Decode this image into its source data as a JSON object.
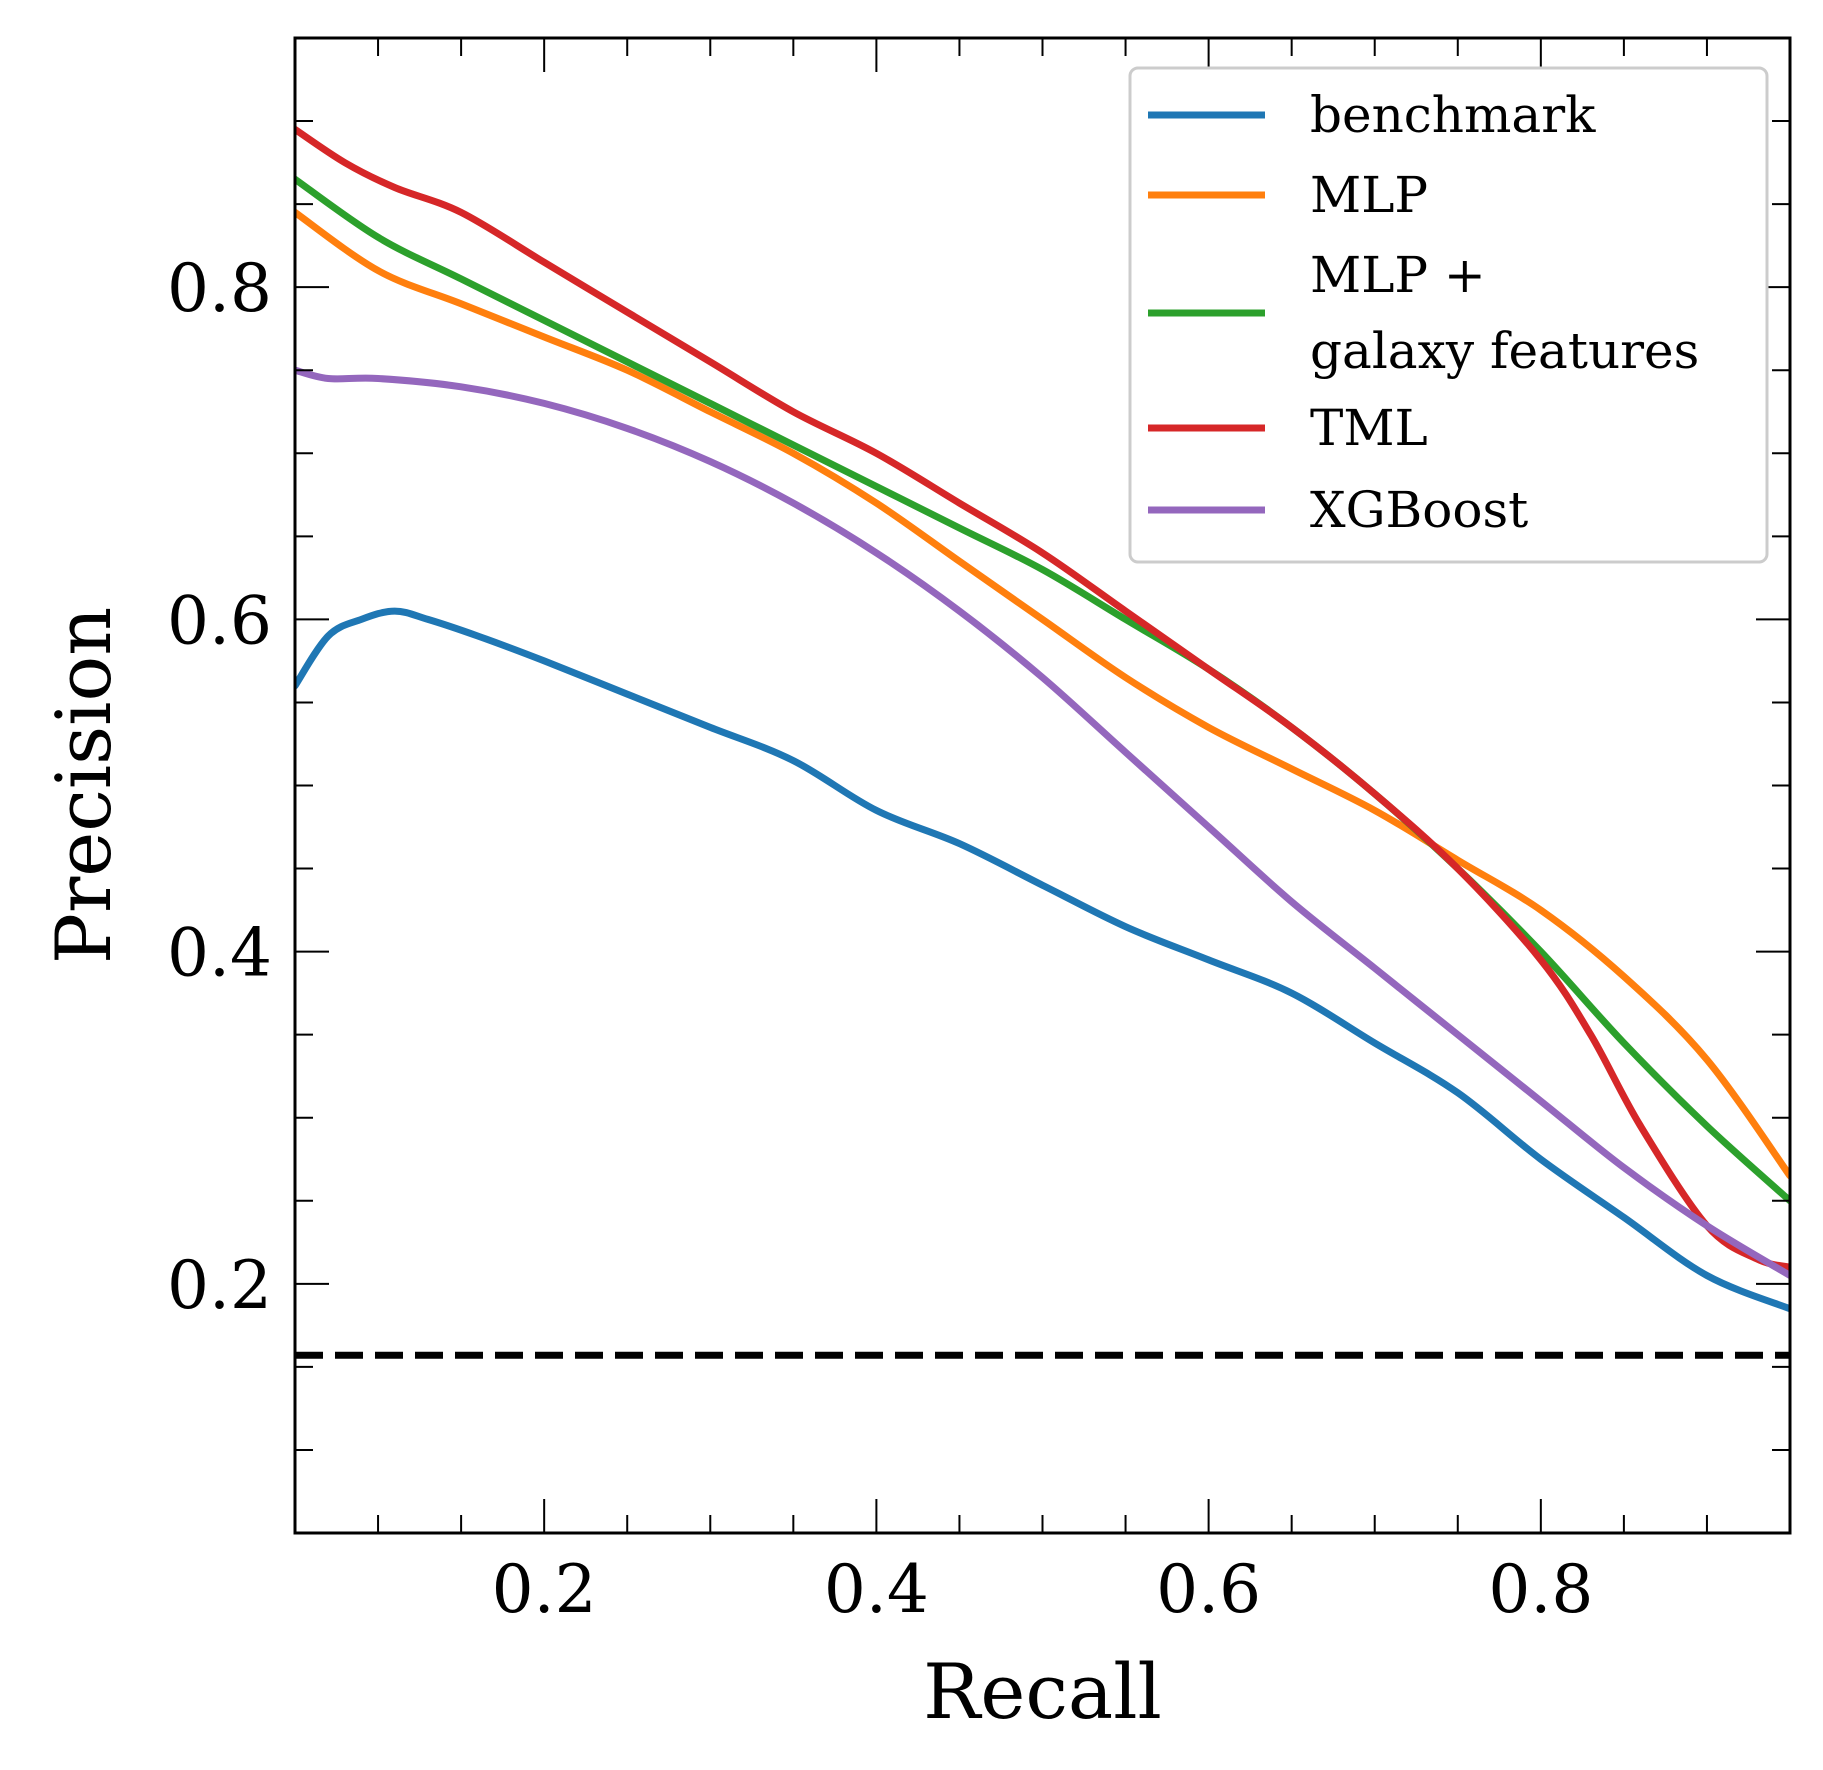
{
  "chart_data": {
    "type": "line",
    "title": "",
    "xlabel": "Recall",
    "ylabel": "Precision",
    "xlim": [
      0.05,
      0.95
    ],
    "ylim": [
      0.05,
      0.95
    ],
    "xticks": [
      0.2,
      0.4,
      0.6,
      0.8
    ],
    "xtick_labels": [
      "0.2",
      "0.4",
      "0.6",
      "0.8"
    ],
    "yticks": [
      0.2,
      0.4,
      0.6,
      0.8
    ],
    "ytick_labels": [
      "0.2",
      "0.4",
      "0.6",
      "0.8"
    ],
    "minor_step": 0.05,
    "grid": false,
    "legend_position": "top-right",
    "baseline": {
      "value": 0.157,
      "style": "dashed",
      "color": "#000000"
    },
    "series": [
      {
        "name": "benchmark",
        "color": "#1f77b4",
        "x": [
          0.05,
          0.07,
          0.09,
          0.11,
          0.13,
          0.16,
          0.2,
          0.25,
          0.3,
          0.35,
          0.4,
          0.45,
          0.5,
          0.55,
          0.6,
          0.65,
          0.7,
          0.75,
          0.8,
          0.85,
          0.9,
          0.95
        ],
        "y": [
          0.56,
          0.59,
          0.6,
          0.605,
          0.6,
          0.59,
          0.575,
          0.555,
          0.535,
          0.515,
          0.485,
          0.465,
          0.44,
          0.415,
          0.395,
          0.375,
          0.345,
          0.315,
          0.275,
          0.24,
          0.205,
          0.185
        ]
      },
      {
        "name": "MLP",
        "color": "#ff7f0e",
        "x": [
          0.05,
          0.1,
          0.15,
          0.2,
          0.25,
          0.3,
          0.35,
          0.4,
          0.45,
          0.5,
          0.55,
          0.6,
          0.65,
          0.7,
          0.75,
          0.8,
          0.85,
          0.9,
          0.95
        ],
        "y": [
          0.845,
          0.81,
          0.79,
          0.77,
          0.75,
          0.725,
          0.7,
          0.67,
          0.635,
          0.6,
          0.565,
          0.535,
          0.51,
          0.485,
          0.455,
          0.425,
          0.385,
          0.335,
          0.265
        ]
      },
      {
        "name": "MLP +\ngalaxy features",
        "color": "#2ca02c",
        "x": [
          0.05,
          0.1,
          0.15,
          0.2,
          0.25,
          0.3,
          0.35,
          0.4,
          0.45,
          0.5,
          0.55,
          0.6,
          0.65,
          0.7,
          0.75,
          0.8,
          0.85,
          0.9,
          0.95
        ],
        "y": [
          0.865,
          0.83,
          0.805,
          0.78,
          0.755,
          0.73,
          0.705,
          0.68,
          0.655,
          0.63,
          0.6,
          0.57,
          0.535,
          0.495,
          0.45,
          0.4,
          0.345,
          0.295,
          0.25
        ]
      },
      {
        "name": "TML",
        "color": "#d62728",
        "x": [
          0.05,
          0.08,
          0.11,
          0.15,
          0.2,
          0.25,
          0.3,
          0.35,
          0.4,
          0.45,
          0.5,
          0.55,
          0.6,
          0.65,
          0.7,
          0.75,
          0.8,
          0.83,
          0.86,
          0.9,
          0.93,
          0.95
        ],
        "y": [
          0.895,
          0.875,
          0.86,
          0.845,
          0.815,
          0.785,
          0.755,
          0.725,
          0.7,
          0.67,
          0.64,
          0.605,
          0.57,
          0.535,
          0.495,
          0.45,
          0.395,
          0.35,
          0.295,
          0.235,
          0.215,
          0.21
        ]
      },
      {
        "name": "XGBoost",
        "color": "#9467bd",
        "x": [
          0.05,
          0.07,
          0.1,
          0.15,
          0.2,
          0.25,
          0.3,
          0.35,
          0.4,
          0.45,
          0.5,
          0.55,
          0.6,
          0.65,
          0.7,
          0.75,
          0.8,
          0.85,
          0.9,
          0.95
        ],
        "y": [
          0.75,
          0.745,
          0.745,
          0.74,
          0.73,
          0.715,
          0.695,
          0.67,
          0.64,
          0.605,
          0.565,
          0.52,
          0.475,
          0.43,
          0.39,
          0.35,
          0.31,
          0.27,
          0.235,
          0.205
        ]
      }
    ]
  }
}
